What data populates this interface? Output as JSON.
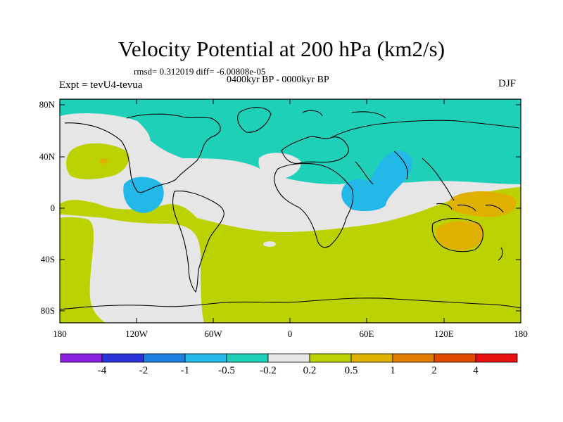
{
  "title": "Velocity Potential at 200 hPa (km2/s)",
  "stats": "rmsd= 0.312019  diff= -6.00808e-05",
  "period": "0400kyr BP - 0000kyr BP",
  "experiment": "Expt = tevU4-tevua",
  "season": "DJF",
  "lat_ticks": [
    "80N",
    "40N",
    "0",
    "40S",
    "80S"
  ],
  "lon_ticks": [
    "180",
    "120W",
    "60W",
    "0",
    "60E",
    "120E",
    "180"
  ],
  "colorbar": {
    "labels": [
      "-4",
      "-2",
      "-1",
      "-0.5",
      "-0.2",
      "0.2",
      "0.5",
      "1",
      "2",
      "4"
    ],
    "colors": [
      "#8a1fe0",
      "#2a32d8",
      "#1d7fe0",
      "#22b8e8",
      "#1fd0b8",
      "#e6e6e6",
      "#bcd200",
      "#e0b000",
      "#e27c00",
      "#e04a00",
      "#e81010"
    ]
  }
}
